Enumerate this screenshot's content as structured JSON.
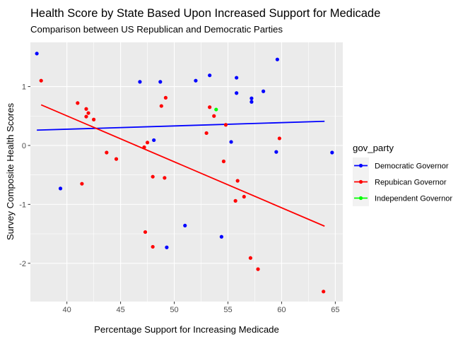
{
  "chart_data": {
    "type": "scatter",
    "title": "Health Score by State Based Upon Increased Support for Medicade",
    "subtitle": "Comparison between US Republican and Democratic Parties",
    "xlabel": "Percentage Support for Increasing Medicade",
    "ylabel": "Survey Composite Health Scores",
    "xlim": [
      36.6,
      65.7
    ],
    "ylim": [
      -2.65,
      1.75
    ],
    "x_ticks": [
      40,
      45,
      50,
      55,
      60,
      65
    ],
    "y_ticks": [
      -2,
      -1,
      0,
      1
    ],
    "grid": true,
    "legend": {
      "title": "gov_party",
      "position": "right"
    },
    "series": [
      {
        "name": "Democratic Governor",
        "color": "#0000ff",
        "points": [
          [
            37.2,
            1.56
          ],
          [
            39.4,
            -0.73
          ],
          [
            46.8,
            1.08
          ],
          [
            48.1,
            0.09
          ],
          [
            48.7,
            1.08
          ],
          [
            49.3,
            -1.73
          ],
          [
            51.0,
            -1.36
          ],
          [
            52.0,
            1.1
          ],
          [
            53.3,
            1.19
          ],
          [
            54.4,
            -1.55
          ],
          [
            55.3,
            0.06
          ],
          [
            55.8,
            1.15
          ],
          [
            55.8,
            0.89
          ],
          [
            57.2,
            0.8
          ],
          [
            57.2,
            0.74
          ],
          [
            58.3,
            0.92
          ],
          [
            59.5,
            -0.11
          ],
          [
            59.6,
            1.46
          ],
          [
            64.7,
            -0.12
          ]
        ],
        "trend": [
          [
            37.2,
            0.26
          ],
          [
            64.0,
            0.41
          ]
        ]
      },
      {
        "name": "Repubican Governor",
        "color": "#ff0000",
        "points": [
          [
            37.6,
            1.1
          ],
          [
            41.0,
            0.72
          ],
          [
            41.4,
            -0.65
          ],
          [
            41.8,
            0.62
          ],
          [
            41.8,
            0.49
          ],
          [
            42.0,
            0.55
          ],
          [
            42.5,
            0.44
          ],
          [
            43.7,
            -0.12
          ],
          [
            44.6,
            -0.23
          ],
          [
            47.2,
            -0.03
          ],
          [
            47.3,
            -1.47
          ],
          [
            47.5,
            0.05
          ],
          [
            48.0,
            -1.72
          ],
          [
            48.0,
            -0.53
          ],
          [
            48.8,
            0.67
          ],
          [
            49.1,
            -0.55
          ],
          [
            49.2,
            0.81
          ],
          [
            53.0,
            0.21
          ],
          [
            53.3,
            0.65
          ],
          [
            53.7,
            0.5
          ],
          [
            54.6,
            -0.27
          ],
          [
            54.8,
            0.35
          ],
          [
            55.7,
            -0.94
          ],
          [
            55.9,
            -0.6
          ],
          [
            56.5,
            -0.87
          ],
          [
            57.1,
            -1.91
          ],
          [
            57.8,
            -2.1
          ],
          [
            59.8,
            0.12
          ],
          [
            63.9,
            -2.48
          ]
        ],
        "trend": [
          [
            37.6,
            0.69
          ],
          [
            64.0,
            -1.37
          ]
        ]
      },
      {
        "name": "Independent Governor",
        "color": "#00ff00",
        "points": [
          [
            53.9,
            0.61
          ]
        ]
      }
    ]
  }
}
